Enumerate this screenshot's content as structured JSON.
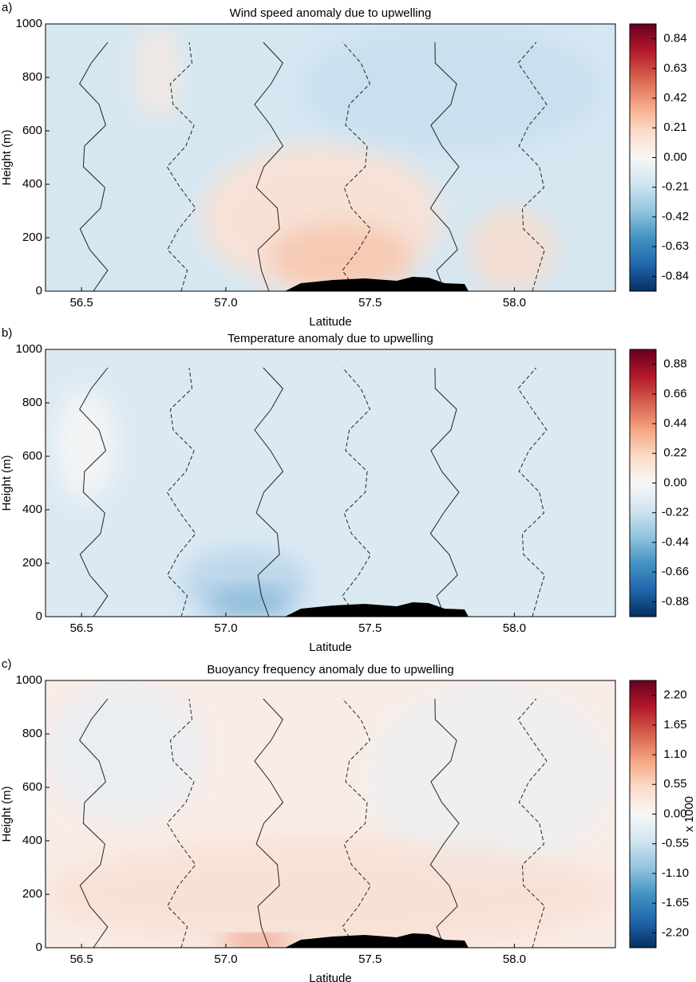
{
  "chart_data": [
    {
      "type": "contour",
      "panel_label": "a)",
      "title": "Wind speed anomaly due to upwelling",
      "xlabel": "Latitude",
      "ylabel": "Height (m)",
      "xlim": [
        56.375,
        58.35
      ],
      "xticks": [
        56.5,
        {
          "value": 57,
          "label": "57.0"
        },
        57.5,
        {
          "value": 58,
          "label": "58.0"
        }
      ],
      "ylim": [
        0,
        1000
      ],
      "yticks": [
        0,
        200,
        400,
        600,
        800,
        1000
      ],
      "colormap": "RdBu_r",
      "clim": [
        -0.945,
        0.945
      ],
      "cticks": [
        0.84,
        0.63,
        0.42,
        0.21,
        {
          "value": 0,
          "label": "0.00"
        },
        -0.21,
        -0.42,
        -0.63,
        -0.84
      ]
    },
    {
      "type": "contour",
      "panel_label": "b)",
      "title": "Temperature anomaly due to upwelling",
      "xlabel": "Latitude",
      "ylabel": "Height (m)",
      "xlim": [
        56.375,
        58.35
      ],
      "xticks": [
        56.5,
        {
          "value": 57,
          "label": "57.0"
        },
        57.5,
        {
          "value": 58,
          "label": "58.0"
        }
      ],
      "ylim": [
        0,
        1000
      ],
      "yticks": [
        0,
        200,
        400,
        600,
        800,
        1000
      ],
      "colormap": "RdBu_r",
      "clim": [
        -0.99,
        0.99
      ],
      "cticks": [
        0.88,
        0.66,
        0.44,
        0.22,
        {
          "value": 0,
          "label": "0.00"
        },
        -0.22,
        -0.44,
        -0.66,
        -0.88
      ]
    },
    {
      "type": "contour",
      "panel_label": "c)",
      "title": "Buoyancy frequency anomaly due to upwelling",
      "xlabel": "Latitude",
      "ylabel": "Height (m)",
      "xlim": [
        56.375,
        58.35
      ],
      "xticks": [
        56.5,
        {
          "value": 57,
          "label": "57.0"
        },
        57.5,
        {
          "value": 58,
          "label": "58.0"
        }
      ],
      "ylim": [
        0,
        1000
      ],
      "yticks": [
        0,
        200,
        400,
        600,
        800,
        1000
      ],
      "colormap": "RdBu_r",
      "clim": [
        -2.475,
        2.475
      ],
      "colorbar_label": "x 1000",
      "cticks": [
        {
          "value": 2.2,
          "label": "2.20"
        },
        1.65,
        {
          "value": 1.1,
          "label": "1.10"
        },
        0.55,
        {
          "value": 0,
          "label": "0.00"
        },
        -0.55,
        {
          "value": -1.1,
          "label": "-1.10"
        },
        -1.65,
        {
          "value": -2.2,
          "label": "-2.20"
        }
      ]
    }
  ]
}
